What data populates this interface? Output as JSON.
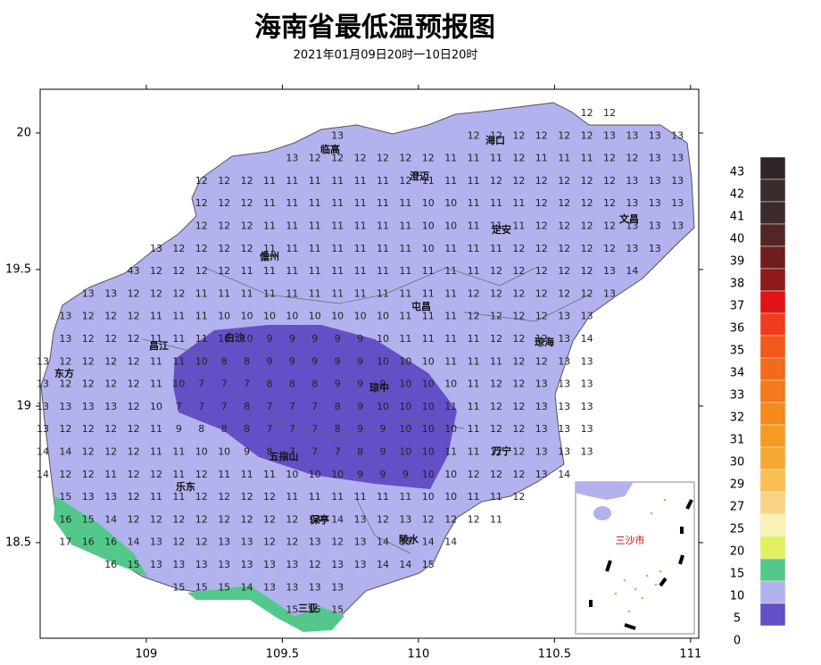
{
  "title": "海南省最低温预报图",
  "subtitle": "2021年01月09日20时一10日20时",
  "map": {
    "xlim": [
      108.61,
      111.03
    ],
    "ylim": [
      18.15,
      20.16
    ],
    "xticks": [
      109,
      109.5,
      110,
      110.5,
      111
    ],
    "yticks": [
      20,
      19.5,
      19,
      18.5
    ],
    "cities": [
      "临高",
      "海口",
      "澄迈",
      "定安",
      "文昌",
      "儋州",
      "屯昌",
      "白沙",
      "昌江",
      "琼海",
      "东方",
      "琼中",
      "万宁",
      "五指山",
      "乐东",
      "保亭",
      "陵水",
      "三亚"
    ],
    "inset_label": "三沙市",
    "grid": [
      [
        null,
        null,
        null,
        null,
        null,
        null,
        null,
        null,
        null,
        null,
        null,
        null,
        null,
        null,
        null,
        null,
        null,
        null,
        null,
        null,
        null,
        null,
        null,
        null,
        12,
        12,
        null,
        null,
        null
      ],
      [
        null,
        null,
        null,
        null,
        null,
        null,
        null,
        null,
        null,
        null,
        null,
        null,
        null,
        13,
        null,
        null,
        null,
        null,
        null,
        12,
        12,
        12,
        12,
        12,
        12,
        13,
        13,
        13,
        13
      ],
      [
        null,
        null,
        null,
        null,
        null,
        null,
        null,
        null,
        null,
        null,
        null,
        13,
        12,
        12,
        12,
        12,
        12,
        12,
        11,
        11,
        11,
        12,
        11,
        11,
        11,
        12,
        12,
        13,
        13
      ],
      [
        null,
        null,
        null,
        null,
        null,
        null,
        null,
        12,
        12,
        12,
        11,
        11,
        11,
        11,
        11,
        11,
        12,
        11,
        11,
        11,
        12,
        12,
        12,
        12,
        12,
        12,
        13,
        13,
        13
      ],
      [
        null,
        null,
        null,
        null,
        null,
        null,
        null,
        12,
        12,
        12,
        11,
        11,
        11,
        11,
        11,
        11,
        11,
        10,
        10,
        11,
        11,
        11,
        12,
        12,
        12,
        12,
        13,
        13,
        13
      ],
      [
        null,
        null,
        null,
        null,
        null,
        null,
        null,
        12,
        12,
        12,
        11,
        11,
        11,
        11,
        11,
        11,
        11,
        10,
        10,
        11,
        11,
        11,
        12,
        12,
        12,
        12,
        13,
        13,
        13
      ],
      [
        null,
        null,
        null,
        null,
        null,
        13,
        12,
        12,
        12,
        12,
        11,
        11,
        11,
        11,
        11,
        11,
        11,
        10,
        11,
        11,
        11,
        12,
        12,
        12,
        12,
        12,
        13,
        13,
        null
      ],
      [
        null,
        null,
        null,
        null,
        43,
        12,
        12,
        12,
        12,
        11,
        11,
        11,
        11,
        11,
        11,
        11,
        11,
        11,
        11,
        11,
        12,
        12,
        12,
        12,
        12,
        13,
        14,
        null,
        null
      ],
      [
        null,
        null,
        13,
        13,
        12,
        12,
        12,
        11,
        11,
        11,
        11,
        11,
        11,
        11,
        11,
        11,
        11,
        11,
        11,
        12,
        12,
        12,
        12,
        12,
        12,
        13,
        null,
        null,
        null
      ],
      [
        null,
        13,
        12,
        12,
        12,
        11,
        11,
        11,
        10,
        10,
        10,
        10,
        10,
        10,
        10,
        10,
        11,
        11,
        11,
        12,
        12,
        12,
        12,
        13,
        13,
        null,
        null,
        null,
        null
      ],
      [
        null,
        13,
        12,
        12,
        12,
        11,
        11,
        11,
        10,
        10,
        9,
        9,
        9,
        9,
        9,
        10,
        11,
        11,
        11,
        11,
        12,
        12,
        12,
        13,
        14,
        null,
        null,
        null,
        null
      ],
      [
        13,
        12,
        12,
        12,
        12,
        11,
        11,
        10,
        8,
        8,
        9,
        9,
        9,
        9,
        9,
        10,
        10,
        10,
        11,
        11,
        11,
        12,
        12,
        13,
        13,
        null,
        null,
        null,
        null
      ],
      [
        13,
        12,
        12,
        12,
        12,
        11,
        10,
        7,
        7,
        7,
        8,
        8,
        8,
        9,
        9,
        9,
        10,
        10,
        10,
        11,
        12,
        12,
        13,
        13,
        13,
        null,
        null,
        null,
        null
      ],
      [
        13,
        13,
        13,
        13,
        12,
        10,
        7,
        7,
        7,
        8,
        7,
        7,
        7,
        8,
        9,
        10,
        10,
        10,
        11,
        11,
        12,
        12,
        13,
        13,
        13,
        null,
        null,
        null,
        null
      ],
      [
        13,
        12,
        12,
        12,
        12,
        11,
        9,
        8,
        8,
        8,
        7,
        7,
        7,
        8,
        9,
        9,
        10,
        10,
        10,
        11,
        12,
        12,
        13,
        13,
        13,
        null,
        null,
        null,
        null
      ],
      [
        14,
        14,
        12,
        12,
        12,
        11,
        11,
        10,
        10,
        9,
        8,
        7,
        7,
        7,
        8,
        9,
        10,
        10,
        11,
        11,
        12,
        12,
        13,
        13,
        13,
        null,
        null,
        null,
        null
      ],
      [
        14,
        12,
        12,
        11,
        12,
        12,
        11,
        12,
        11,
        11,
        11,
        10,
        10,
        10,
        9,
        9,
        9,
        10,
        10,
        12,
        12,
        12,
        13,
        14,
        null,
        null,
        null,
        null,
        null
      ],
      [
        null,
        15,
        13,
        13,
        12,
        11,
        11,
        12,
        12,
        12,
        12,
        11,
        11,
        11,
        11,
        11,
        11,
        10,
        10,
        11,
        11,
        12,
        null,
        null,
        null,
        null,
        null,
        null,
        null
      ],
      [
        null,
        16,
        15,
        14,
        12,
        12,
        12,
        12,
        12,
        12,
        12,
        12,
        13,
        14,
        13,
        12,
        13,
        12,
        12,
        12,
        11,
        null,
        null,
        null,
        null,
        null,
        null,
        null,
        null
      ],
      [
        null,
        17,
        16,
        16,
        14,
        13,
        12,
        12,
        13,
        13,
        12,
        12,
        13,
        12,
        13,
        14,
        13,
        14,
        14,
        null,
        null,
        null,
        null,
        null,
        null,
        null,
        null,
        null,
        null
      ],
      [
        null,
        null,
        null,
        16,
        15,
        13,
        13,
        13,
        13,
        13,
        13,
        13,
        12,
        13,
        13,
        14,
        14,
        15,
        null,
        null,
        null,
        null,
        null,
        null,
        null,
        null,
        null,
        null,
        null
      ],
      [
        null,
        null,
        null,
        null,
        null,
        null,
        15,
        15,
        15,
        14,
        13,
        13,
        13,
        13,
        null,
        null,
        null,
        null,
        null,
        null,
        null,
        null,
        null,
        null,
        null,
        null,
        null,
        null,
        null
      ],
      [
        null,
        null,
        null,
        null,
        null,
        null,
        null,
        null,
        null,
        null,
        null,
        15,
        15,
        15,
        null,
        null,
        null,
        null,
        null,
        null,
        null,
        null,
        null,
        null,
        null,
        null,
        null,
        null,
        null
      ]
    ]
  },
  "legend": {
    "labels": [
      43,
      42,
      41,
      40,
      39,
      38,
      37,
      36,
      35,
      34,
      33,
      32,
      31,
      30,
      29,
      27,
      25,
      20,
      15,
      10,
      5,
      0
    ],
    "colors": [
      "#2e2626",
      "#3a2c2c",
      "#3e2a2a",
      "#522626",
      "#6e1e1e",
      "#8e1a1a",
      "#e01414",
      "#f03c1c",
      "#f2581c",
      "#f26a1c",
      "#f47a1c",
      "#f68a1c",
      "#f69a22",
      "#f6a832",
      "#f8bf52",
      "#fad486",
      "#f8f2b4",
      "#e0f060",
      "#54c88a",
      "#b2b2ee",
      "#6450c6"
    ]
  }
}
